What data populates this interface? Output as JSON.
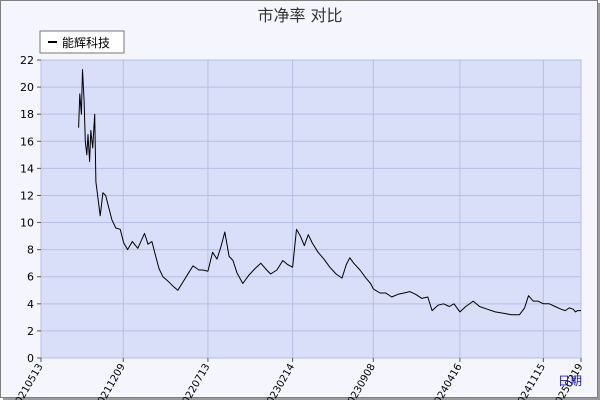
{
  "chart_data": {
    "type": "line",
    "title": "市净率 对比",
    "xlabel": "日期",
    "ylabel": "",
    "ylim": [
      0,
      22
    ],
    "yticks": [
      0,
      2,
      4,
      6,
      8,
      10,
      12,
      14,
      16,
      18,
      20,
      22
    ],
    "xlim": [
      "2021-05-13",
      "2025-02-19"
    ],
    "xticks": [
      {
        "label": "20210513",
        "date": "2021-05-13"
      },
      {
        "label": "20211209",
        "date": "2021-12-09"
      },
      {
        "label": "20220713",
        "date": "2022-07-13"
      },
      {
        "label": "20230214",
        "date": "2023-02-14"
      },
      {
        "label": "20230908",
        "date": "2023-09-08"
      },
      {
        "label": "20240416",
        "date": "2024-04-16"
      },
      {
        "label": "20241115",
        "date": "2024-11-15"
      },
      {
        "label": "20250219",
        "date": "2025-02-19"
      }
    ],
    "grid": true,
    "legend_position": "top-left",
    "series": [
      {
        "name": "能辉科技",
        "color": "#000000",
        "points": [
          [
            "2021-08-17",
            17.0
          ],
          [
            "2021-08-20",
            19.5
          ],
          [
            "2021-08-24",
            18.0
          ],
          [
            "2021-08-27",
            21.3
          ],
          [
            "2021-08-31",
            19.0
          ],
          [
            "2021-09-03",
            16.0
          ],
          [
            "2021-09-07",
            15.0
          ],
          [
            "2021-09-10",
            16.5
          ],
          [
            "2021-09-14",
            14.5
          ],
          [
            "2021-09-17",
            16.8
          ],
          [
            "2021-09-22",
            15.5
          ],
          [
            "2021-09-27",
            18.0
          ],
          [
            "2021-09-30",
            13.0
          ],
          [
            "2021-10-11",
            10.5
          ],
          [
            "2021-10-18",
            12.2
          ],
          [
            "2021-10-25",
            12.0
          ],
          [
            "2021-11-01",
            11.2
          ],
          [
            "2021-11-10",
            10.2
          ],
          [
            "2021-11-20",
            9.6
          ],
          [
            "2021-12-01",
            9.5
          ],
          [
            "2021-12-10",
            8.5
          ],
          [
            "2021-12-20",
            8.0
          ],
          [
            "2022-01-01",
            8.6
          ],
          [
            "2022-01-15",
            8.1
          ],
          [
            "2022-02-01",
            9.2
          ],
          [
            "2022-02-10",
            8.4
          ],
          [
            "2022-02-20",
            8.6
          ],
          [
            "2022-03-01",
            7.6
          ],
          [
            "2022-03-10",
            6.6
          ],
          [
            "2022-03-20",
            6.0
          ],
          [
            "2022-04-01",
            5.7
          ],
          [
            "2022-04-15",
            5.3
          ],
          [
            "2022-04-27",
            5.0
          ],
          [
            "2022-05-10",
            5.6
          ],
          [
            "2022-05-25",
            6.3
          ],
          [
            "2022-06-05",
            6.8
          ],
          [
            "2022-06-20",
            6.5
          ],
          [
            "2022-07-01",
            6.5
          ],
          [
            "2022-07-13",
            6.4
          ],
          [
            "2022-07-25",
            7.8
          ],
          [
            "2022-08-05",
            7.3
          ],
          [
            "2022-08-15",
            8.2
          ],
          [
            "2022-08-25",
            9.3
          ],
          [
            "2022-09-05",
            7.5
          ],
          [
            "2022-09-15",
            7.2
          ],
          [
            "2022-09-25",
            6.3
          ],
          [
            "2022-10-10",
            5.5
          ],
          [
            "2022-10-25",
            6.1
          ],
          [
            "2022-11-10",
            6.6
          ],
          [
            "2022-11-25",
            7.0
          ],
          [
            "2022-12-10",
            6.5
          ],
          [
            "2022-12-20",
            6.2
          ],
          [
            "2023-01-05",
            6.5
          ],
          [
            "2023-01-20",
            7.2
          ],
          [
            "2023-02-01",
            6.9
          ],
          [
            "2023-02-14",
            6.7
          ],
          [
            "2023-02-24",
            9.5
          ],
          [
            "2023-03-06",
            9.0
          ],
          [
            "2023-03-16",
            8.3
          ],
          [
            "2023-03-26",
            9.1
          ],
          [
            "2023-04-05",
            8.5
          ],
          [
            "2023-04-20",
            7.8
          ],
          [
            "2023-05-05",
            7.3
          ],
          [
            "2023-05-20",
            6.7
          ],
          [
            "2023-06-05",
            6.2
          ],
          [
            "2023-06-20",
            5.9
          ],
          [
            "2023-07-01",
            6.9
          ],
          [
            "2023-07-10",
            7.4
          ],
          [
            "2023-07-20",
            7.0
          ],
          [
            "2023-08-05",
            6.5
          ],
          [
            "2023-08-20",
            5.9
          ],
          [
            "2023-09-01",
            5.5
          ],
          [
            "2023-09-08",
            5.1
          ],
          [
            "2023-09-25",
            4.8
          ],
          [
            "2023-10-10",
            4.8
          ],
          [
            "2023-10-25",
            4.5
          ],
          [
            "2023-11-10",
            4.7
          ],
          [
            "2023-11-25",
            4.8
          ],
          [
            "2023-12-10",
            4.9
          ],
          [
            "2023-12-25",
            4.7
          ],
          [
            "2024-01-10",
            4.4
          ],
          [
            "2024-01-25",
            4.5
          ],
          [
            "2024-02-05",
            3.5
          ],
          [
            "2024-02-20",
            3.9
          ],
          [
            "2024-03-05",
            4.0
          ],
          [
            "2024-03-20",
            3.8
          ],
          [
            "2024-04-01",
            4.0
          ],
          [
            "2024-04-16",
            3.4
          ],
          [
            "2024-05-01",
            3.8
          ],
          [
            "2024-05-20",
            4.2
          ],
          [
            "2024-06-05",
            3.8
          ],
          [
            "2024-06-25",
            3.6
          ],
          [
            "2024-07-15",
            3.4
          ],
          [
            "2024-08-05",
            3.3
          ],
          [
            "2024-08-25",
            3.2
          ],
          [
            "2024-09-15",
            3.2
          ],
          [
            "2024-09-28",
            3.7
          ],
          [
            "2024-10-08",
            4.6
          ],
          [
            "2024-10-20",
            4.2
          ],
          [
            "2024-11-01",
            4.2
          ],
          [
            "2024-11-15",
            4.0
          ],
          [
            "2024-11-30",
            4.0
          ],
          [
            "2024-12-15",
            3.8
          ],
          [
            "2024-12-30",
            3.6
          ],
          [
            "2025-01-10",
            3.5
          ],
          [
            "2025-01-20",
            3.7
          ],
          [
            "2025-01-30",
            3.6
          ],
          [
            "2025-02-05",
            3.4
          ],
          [
            "2025-02-10",
            3.5
          ],
          [
            "2025-02-19",
            3.5
          ]
        ]
      }
    ]
  }
}
